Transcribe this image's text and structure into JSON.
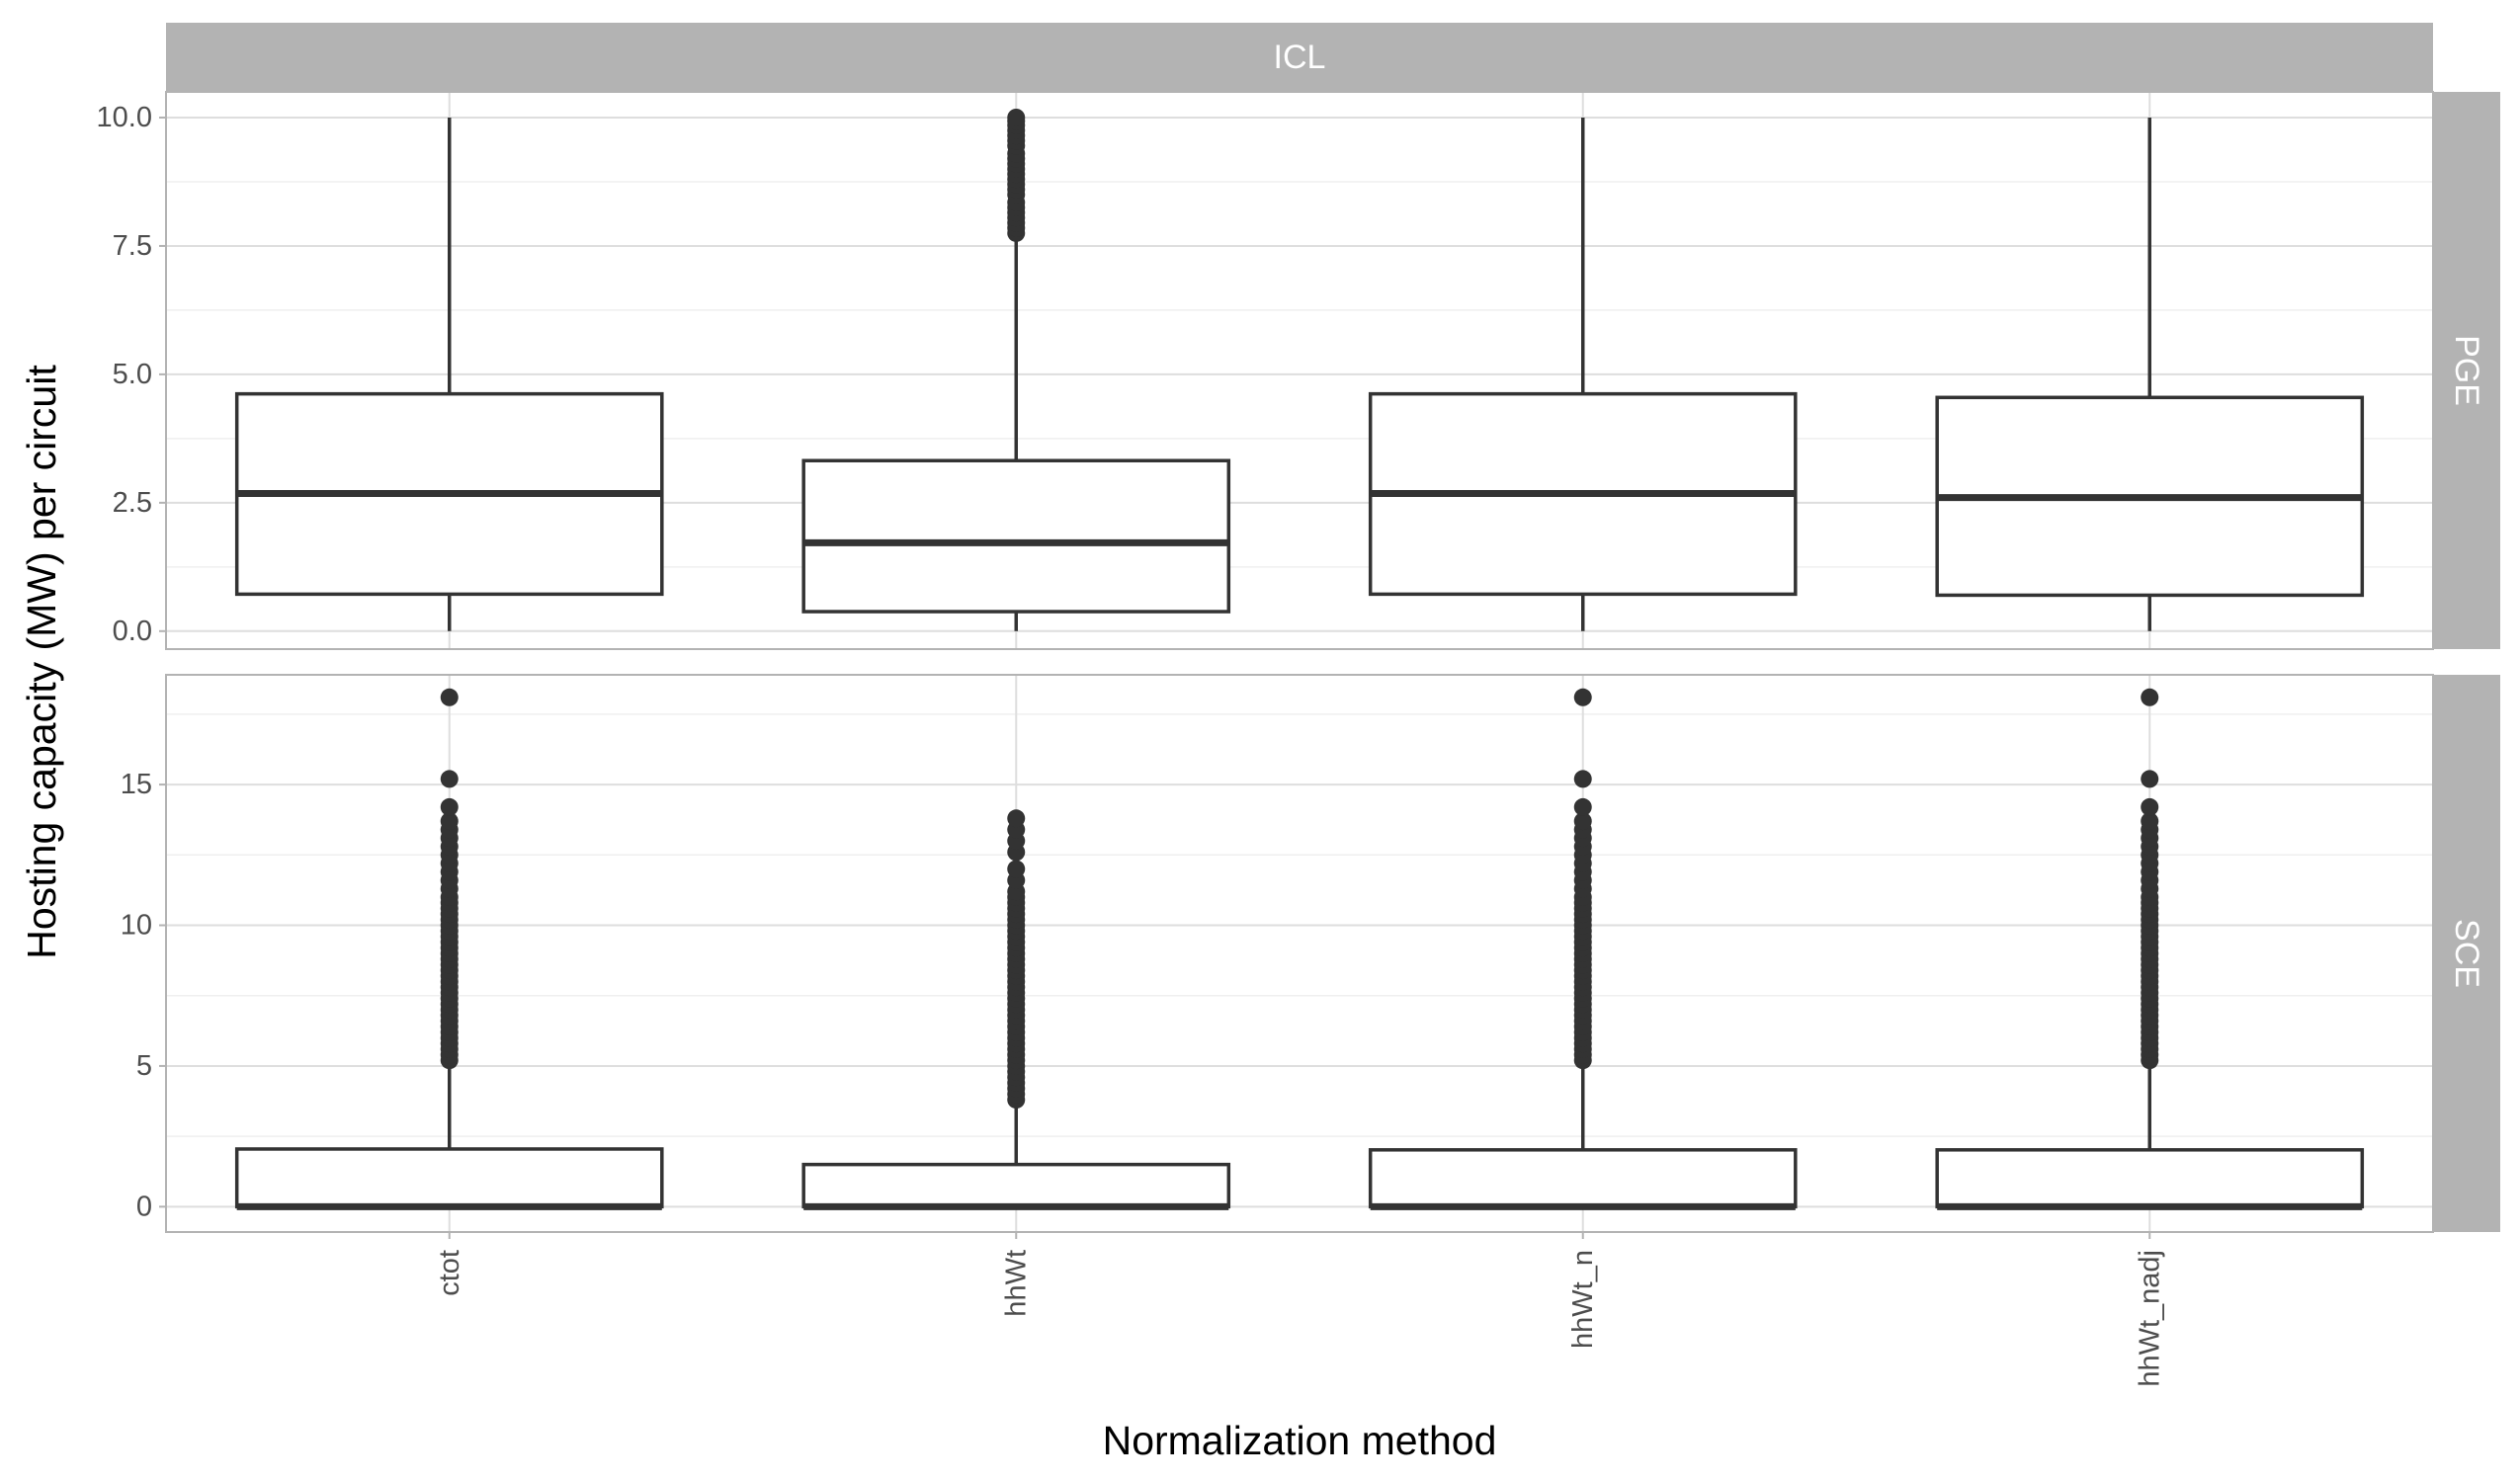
{
  "chart_data": {
    "type": "boxplot",
    "facet_column": "ICL",
    "xlabel": "Normalization method",
    "ylabel": "Hosting capacity (MW) per circuit",
    "categories": [
      "ctot",
      "hhWt",
      "hhWt_n",
      "hhWt_nadj"
    ],
    "colors": {
      "strip": "#b3b3b3",
      "panel_border": "#b3b3b3",
      "grid_major": "#dedede",
      "grid_minor": "#efefef",
      "box_line": "#333333",
      "box_fill": "#ffffff",
      "outlier": "#333333"
    },
    "panels": [
      {
        "name": "PGE",
        "ylim": [
          -0.35,
          10.5
        ],
        "yticks": [
          0,
          2.5,
          5,
          7.5,
          10
        ],
        "ytick_labels": [
          "0.0",
          "2.5",
          "5.0",
          "7.5",
          "10.0"
        ],
        "boxes": [
          {
            "category": "ctot",
            "min": 0,
            "q1": 0.72,
            "median": 2.68,
            "q3": 4.62,
            "max": 10,
            "outliers": []
          },
          {
            "category": "hhWt",
            "min": 0,
            "q1": 0.38,
            "median": 1.72,
            "q3": 3.32,
            "max": 7.7,
            "outliers": [
              7.75,
              7.85,
              7.95,
              8.05,
              8.15,
              8.25,
              8.35,
              8.5,
              8.6,
              8.7,
              8.8,
              8.9,
              9.0,
              9.1,
              9.2,
              9.3,
              9.45,
              9.55,
              9.65,
              9.75,
              9.85,
              9.93,
              10.0
            ]
          },
          {
            "category": "hhWt_n",
            "min": 0,
            "q1": 0.72,
            "median": 2.68,
            "q3": 4.62,
            "max": 10,
            "outliers": []
          },
          {
            "category": "hhWt_nadj",
            "min": 0,
            "q1": 0.7,
            "median": 2.6,
            "q3": 4.55,
            "max": 10,
            "outliers": []
          }
        ]
      },
      {
        "name": "SCE",
        "ylim": [
          -0.9,
          18.9
        ],
        "yticks": [
          0,
          5,
          10,
          15
        ],
        "ytick_labels": [
          "0",
          "5",
          "10",
          "15"
        ],
        "boxes": [
          {
            "category": "ctot",
            "min": 0,
            "q1": 0,
            "median": 0,
            "q3": 2.05,
            "max": 5.1,
            "outliers": [
              5.2,
              5.4,
              5.6,
              5.8,
              6.0,
              6.2,
              6.4,
              6.6,
              6.8,
              7.0,
              7.2,
              7.4,
              7.6,
              7.8,
              8.0,
              8.2,
              8.4,
              8.6,
              8.8,
              9.0,
              9.2,
              9.4,
              9.6,
              9.8,
              10.0,
              10.2,
              10.4,
              10.6,
              10.8,
              11.0,
              11.3,
              11.6,
              11.9,
              12.2,
              12.5,
              12.8,
              13.1,
              13.4,
              13.7,
              14.2,
              15.2,
              18.1
            ]
          },
          {
            "category": "hhWt",
            "min": 0,
            "q1": 0,
            "median": 0,
            "q3": 1.5,
            "max": 3.7,
            "outliers": [
              3.8,
              4.0,
              4.2,
              4.4,
              4.6,
              4.8,
              5.0,
              5.2,
              5.4,
              5.6,
              5.8,
              6.0,
              6.2,
              6.4,
              6.6,
              6.8,
              7.0,
              7.2,
              7.4,
              7.6,
              7.8,
              8.0,
              8.2,
              8.4,
              8.6,
              8.8,
              9.0,
              9.2,
              9.4,
              9.6,
              9.8,
              10.0,
              10.2,
              10.4,
              10.6,
              10.8,
              11.0,
              11.2,
              11.6,
              12.0,
              12.6,
              13.0,
              13.4,
              13.8
            ]
          },
          {
            "category": "hhWt_n",
            "min": 0,
            "q1": 0,
            "median": 0,
            "q3": 2.02,
            "max": 5.1,
            "outliers": [
              5.2,
              5.4,
              5.6,
              5.8,
              6.0,
              6.2,
              6.4,
              6.6,
              6.8,
              7.0,
              7.2,
              7.4,
              7.6,
              7.8,
              8.0,
              8.2,
              8.4,
              8.6,
              8.8,
              9.0,
              9.2,
              9.4,
              9.6,
              9.8,
              10.0,
              10.2,
              10.4,
              10.6,
              10.8,
              11.0,
              11.3,
              11.6,
              11.9,
              12.2,
              12.5,
              12.8,
              13.1,
              13.4,
              13.7,
              14.2,
              15.2,
              18.1
            ]
          },
          {
            "category": "hhWt_nadj",
            "min": 0,
            "q1": 0,
            "median": 0,
            "q3": 2.02,
            "max": 5.1,
            "outliers": [
              5.2,
              5.4,
              5.6,
              5.8,
              6.0,
              6.2,
              6.4,
              6.6,
              6.8,
              7.0,
              7.2,
              7.4,
              7.6,
              7.8,
              8.0,
              8.2,
              8.4,
              8.6,
              8.8,
              9.0,
              9.2,
              9.4,
              9.6,
              9.8,
              10.0,
              10.2,
              10.4,
              10.6,
              10.8,
              11.0,
              11.3,
              11.6,
              11.9,
              12.2,
              12.5,
              12.8,
              13.1,
              13.4,
              13.7,
              14.2,
              15.2,
              18.1
            ]
          }
        ]
      }
    ]
  }
}
